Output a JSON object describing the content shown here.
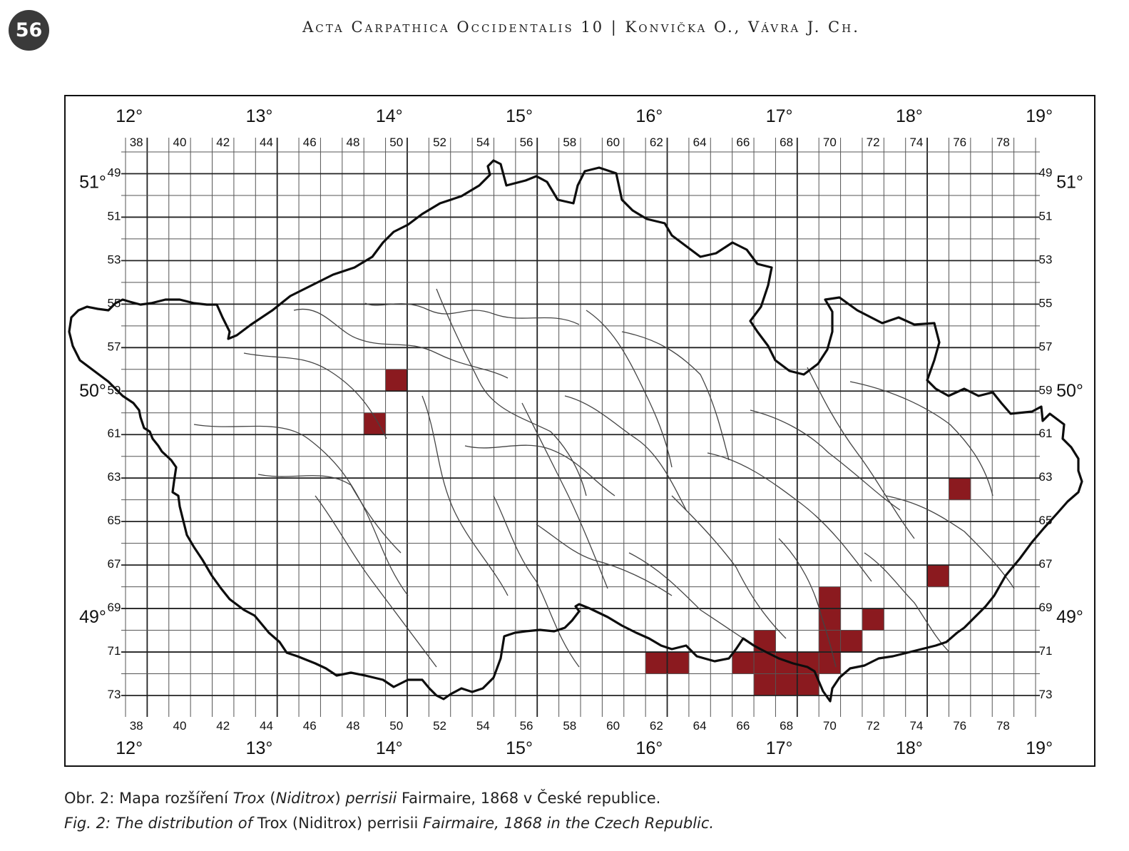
{
  "header": {
    "page_number": "56",
    "running_head": "Acta Carpathica Occidentalis 10 | Konvička O., Vávra J. Ch."
  },
  "map": {
    "grid": {
      "longitude_labels": [
        "12°",
        "13°",
        "14°",
        "15°",
        "16°",
        "17°",
        "18°",
        "19°"
      ],
      "latitude_labels_left": [
        "51°",
        "50°",
        "49°"
      ],
      "latitude_labels_right": [
        "51°",
        "50°",
        "49°"
      ],
      "column_labels": [
        "38",
        "40",
        "42",
        "44",
        "46",
        "48",
        "50",
        "52",
        "54",
        "56",
        "58",
        "60",
        "62",
        "64",
        "66",
        "68",
        "70",
        "72",
        "74",
        "76",
        "78"
      ],
      "row_labels": [
        "49",
        "51",
        "53",
        "55",
        "57",
        "59",
        "61",
        "63",
        "65",
        "67",
        "69",
        "71",
        "73"
      ]
    },
    "records_color": "#8b1a1f",
    "records": [
      {
        "col": 49,
        "row": 58
      },
      {
        "col": 48,
        "row": 60
      },
      {
        "col": 75,
        "row": 63
      },
      {
        "col": 74,
        "row": 67
      },
      {
        "col": 69,
        "row": 68
      },
      {
        "col": 69,
        "row": 69
      },
      {
        "col": 71,
        "row": 69
      },
      {
        "col": 66,
        "row": 70
      },
      {
        "col": 69,
        "row": 70
      },
      {
        "col": 70,
        "row": 70
      },
      {
        "col": 61,
        "row": 71
      },
      {
        "col": 62,
        "row": 71
      },
      {
        "col": 65,
        "row": 71
      },
      {
        "col": 66,
        "row": 71
      },
      {
        "col": 67,
        "row": 71
      },
      {
        "col": 68,
        "row": 71
      },
      {
        "col": 69,
        "row": 71
      },
      {
        "col": 66,
        "row": 72
      },
      {
        "col": 67,
        "row": 72
      },
      {
        "col": 68,
        "row": 72
      }
    ]
  },
  "caption": {
    "cz": {
      "prefix": "Obr. 2: Mapa rozšíření ",
      "genus": "Trox",
      "subgenus": "Niditrox",
      "species": "perrisii",
      "authority": "Fairmaire, 1868",
      "suffix": " v České republice."
    },
    "en": {
      "prefix": "Fig. 2: The distribution of ",
      "genus": "Trox",
      "subgenus": "Niditrox",
      "species": "perrisii",
      "authority": "Fairmaire, 1868",
      "suffix": " in the Czech Republic."
    }
  }
}
